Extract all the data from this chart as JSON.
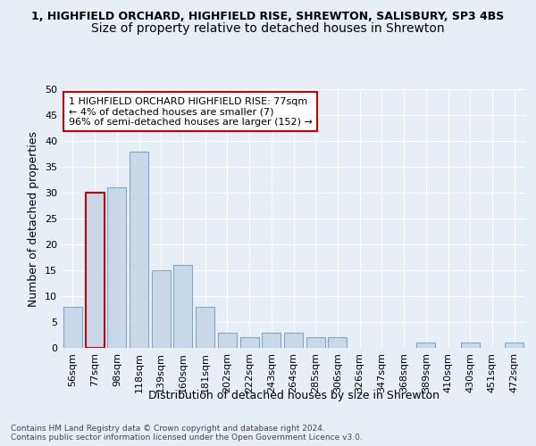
{
  "title_line1": "1, HIGHFIELD ORCHARD, HIGHFIELD RISE, SHREWTON, SALISBURY, SP3 4BS",
  "title_line2": "Size of property relative to detached houses in Shrewton",
  "xlabel": "Distribution of detached houses by size in Shrewton",
  "ylabel": "Number of detached properties",
  "categories": [
    "56sqm",
    "77sqm",
    "98sqm",
    "118sqm",
    "139sqm",
    "160sqm",
    "181sqm",
    "202sqm",
    "222sqm",
    "243sqm",
    "264sqm",
    "285sqm",
    "306sqm",
    "326sqm",
    "347sqm",
    "368sqm",
    "389sqm",
    "410sqm",
    "430sqm",
    "451sqm",
    "472sqm"
  ],
  "values": [
    8,
    30,
    31,
    38,
    15,
    16,
    8,
    3,
    2,
    3,
    3,
    2,
    2,
    0,
    0,
    0,
    1,
    0,
    1,
    0,
    1
  ],
  "bar_color": "#c8d8e8",
  "bar_edge_color": "#7aaac8",
  "highlight_bar_index": 1,
  "highlight_bar_edge_color": "#cc0000",
  "ylim": [
    0,
    50
  ],
  "yticks": [
    0,
    5,
    10,
    15,
    20,
    25,
    30,
    35,
    40,
    45,
    50
  ],
  "annotation_text": "1 HIGHFIELD ORCHARD HIGHFIELD RISE: 77sqm\n← 4% of detached houses are smaller (7)\n96% of semi-detached houses are larger (152) →",
  "background_color": "#e8eef5",
  "plot_background_color": "#e8eef5",
  "footer_text": "Contains HM Land Registry data © Crown copyright and database right 2024.\nContains public sector information licensed under the Open Government Licence v3.0.",
  "title1_fontsize": 9,
  "title2_fontsize": 10,
  "axis_label_fontsize": 9,
  "tick_fontsize": 8,
  "annotation_fontsize": 8
}
